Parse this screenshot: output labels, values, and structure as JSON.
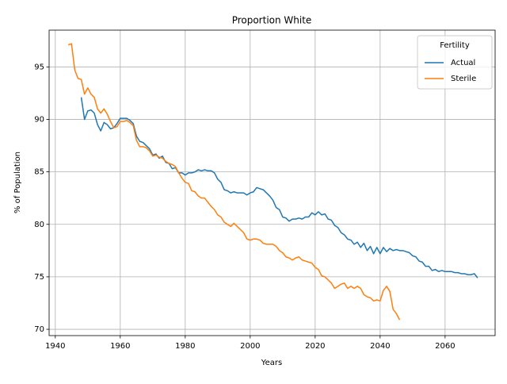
{
  "chart_data": {
    "type": "line",
    "title": "Proportion White",
    "x_label": "Years",
    "y_label": "% of Population",
    "legend_title": "Fertility",
    "legend_position": "upper right",
    "grid": true,
    "xlim": [
      1938.1,
      2075.4
    ],
    "ylim": [
      69.4,
      98.5
    ],
    "xticks": [
      1940,
      1960,
      1980,
      2000,
      2020,
      2040,
      2060
    ],
    "yticks": [
      70,
      75,
      80,
      85,
      90,
      95
    ],
    "x": [
      1944,
      1945,
      1946,
      1947,
      1948,
      1949,
      1950,
      1951,
      1952,
      1953,
      1954,
      1955,
      1956,
      1957,
      1958,
      1959,
      1960,
      1961,
      1962,
      1963,
      1964,
      1965,
      1966,
      1967,
      1968,
      1969,
      1970,
      1971,
      1972,
      1973,
      1974,
      1975,
      1976,
      1977,
      1978,
      1979,
      1980,
      1981,
      1982,
      1983,
      1984,
      1985,
      1986,
      1987,
      1988,
      1989,
      1990,
      1991,
      1992,
      1993,
      1994,
      1995,
      1996,
      1997,
      1998,
      1999,
      2000,
      2001,
      2002,
      2003,
      2004,
      2005,
      2006,
      2007,
      2008,
      2009,
      2010,
      2011,
      2012,
      2013,
      2014,
      2015,
      2016,
      2017,
      2018,
      2019,
      2020,
      2021,
      2022,
      2023,
      2024,
      2025,
      2026,
      2027,
      2028,
      2029,
      2030,
      2031,
      2032,
      2033,
      2034,
      2035,
      2036,
      2037,
      2038,
      2039,
      2040,
      2041,
      2042,
      2043,
      2044,
      2045,
      2046,
      2047,
      2048,
      2049,
      2050,
      2051,
      2052,
      2053,
      2054,
      2055,
      2056,
      2057,
      2058,
      2059,
      2060,
      2061,
      2062,
      2063,
      2064,
      2065,
      2066,
      2067,
      2068,
      2069,
      2070
    ],
    "series": [
      {
        "name": "Actual",
        "color": "#1f77b4",
        "values": [
          null,
          null,
          null,
          null,
          92.1,
          90.0,
          90.8,
          90.9,
          90.6,
          89.5,
          88.9,
          89.7,
          89.5,
          89.1,
          89.2,
          89.6,
          90.1,
          90.1,
          90.1,
          89.9,
          89.6,
          88.4,
          87.9,
          87.8,
          87.5,
          87.2,
          86.6,
          86.7,
          86.3,
          86.5,
          85.9,
          85.8,
          85.3,
          85.4,
          84.9,
          84.9,
          84.7,
          84.9,
          84.9,
          85.0,
          85.2,
          85.1,
          85.2,
          85.1,
          85.1,
          84.9,
          84.3,
          84.0,
          83.3,
          83.2,
          83.0,
          83.1,
          83.0,
          83.0,
          83.0,
          82.8,
          83.0,
          83.1,
          83.5,
          83.4,
          83.3,
          83.0,
          82.7,
          82.3,
          81.6,
          81.4,
          80.7,
          80.6,
          80.3,
          80.5,
          80.5,
          80.6,
          80.5,
          80.7,
          80.7,
          81.1,
          80.9,
          81.2,
          80.9,
          81.0,
          80.5,
          80.4,
          79.9,
          79.7,
          79.2,
          79.0,
          78.6,
          78.5,
          78.1,
          78.3,
          77.8,
          78.2,
          77.5,
          77.9,
          77.2,
          77.8,
          77.2,
          77.8,
          77.4,
          77.7,
          77.5,
          77.6,
          77.5,
          77.5,
          77.4,
          77.3,
          77.0,
          76.9,
          76.5,
          76.4,
          76.0,
          76.0,
          75.6,
          75.7,
          75.5,
          75.6,
          75.5,
          75.5,
          75.5,
          75.4,
          75.4,
          75.3,
          75.3,
          75.2,
          75.2,
          75.3,
          74.9
        ]
      },
      {
        "name": "Sterile",
        "color": "#ff7f0e",
        "values": [
          97.1,
          97.2,
          94.7,
          93.9,
          93.8,
          92.4,
          93.0,
          92.4,
          92.1,
          91.0,
          90.6,
          91.0,
          90.5,
          89.8,
          89.2,
          89.3,
          89.8,
          89.8,
          89.9,
          89.7,
          89.4,
          88.0,
          87.4,
          87.4,
          87.3,
          87.0,
          86.5,
          86.6,
          86.4,
          86.3,
          86.0,
          85.8,
          85.7,
          85.5,
          84.9,
          84.4,
          84.0,
          83.9,
          83.2,
          83.1,
          82.7,
          82.5,
          82.5,
          82.1,
          81.7,
          81.4,
          80.9,
          80.7,
          80.2,
          80.0,
          79.8,
          80.1,
          79.8,
          79.5,
          79.2,
          78.6,
          78.5,
          78.6,
          78.6,
          78.5,
          78.2,
          78.1,
          78.1,
          78.1,
          77.9,
          77.5,
          77.3,
          76.9,
          76.8,
          76.6,
          76.8,
          76.9,
          76.6,
          76.5,
          76.4,
          76.3,
          75.9,
          75.7,
          75.1,
          75.0,
          74.7,
          74.4,
          73.9,
          74.1,
          74.3,
          74.4,
          73.9,
          74.1,
          73.9,
          74.1,
          73.9,
          73.3,
          73.1,
          73.0,
          72.7,
          72.8,
          72.7,
          73.7,
          74.1,
          73.6,
          71.9,
          71.5,
          70.9,
          null,
          null,
          null,
          null,
          null,
          null,
          null,
          null,
          null,
          null,
          null,
          null,
          null,
          null,
          null,
          null,
          null,
          null,
          null,
          null,
          null,
          null,
          null,
          null
        ]
      }
    ]
  }
}
